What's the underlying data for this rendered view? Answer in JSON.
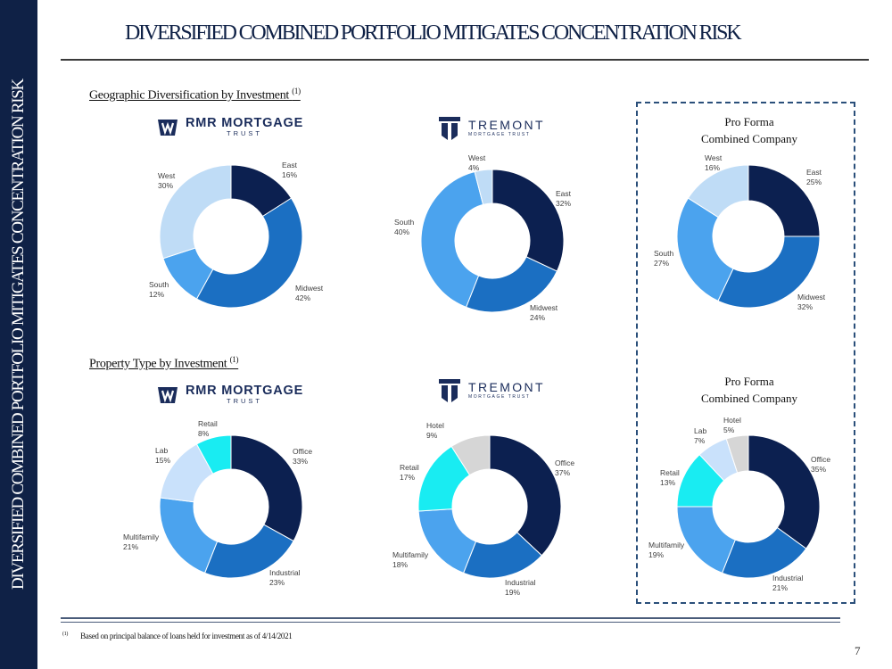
{
  "sidebar_text": "DIVERSIFIED COMBINED PORTFOLIO MITIGATES CONCENTRATION RISK",
  "page_title": "DIVERSIFIED COMBINED PORTFOLIO MITIGATES CONCENTRATION RISK",
  "sections": {
    "geo_heading": "Geographic Diversification by Investment",
    "geo_footnote_marker": "(1)",
    "prop_heading": "Property Type by Investment",
    "prop_footnote_marker": "(1)"
  },
  "logos": {
    "rmr_main": "RMR MORTGAGE",
    "rmr_sub": "TRUST",
    "tremont_main": "TREMONT",
    "tremont_sub": "MORTGAGE TRUST"
  },
  "proforma": {
    "line1": "Pro Forma",
    "line2": "Combined Company"
  },
  "colors": {
    "navy": "#0c2050",
    "blue": "#1b6fc2",
    "light_blue": "#4ba3ee",
    "pale_blue": "#bfdcf6",
    "cyan": "#19ecf2",
    "gray": "#d6d6d6",
    "lavender": "#c9e1fb"
  },
  "chart_data": [
    {
      "type": "pie",
      "id": "rmr-geo",
      "title": "RMR Mortgage Trust - Geographic",
      "categories": [
        "East",
        "Midwest",
        "South",
        "West"
      ],
      "values": [
        16,
        42,
        12,
        30
      ],
      "labels": [
        "16%",
        "42%",
        "12%",
        "30%"
      ],
      "colors": [
        "#0c2050",
        "#1b6fc2",
        "#4ba3ee",
        "#bfdcf6"
      ]
    },
    {
      "type": "pie",
      "id": "tremont-geo",
      "title": "Tremont Mortgage Trust - Geographic",
      "categories": [
        "East",
        "Midwest",
        "South",
        "West"
      ],
      "values": [
        32,
        24,
        40,
        4
      ],
      "labels": [
        "32%",
        "24%",
        "40%",
        "4%"
      ],
      "colors": [
        "#0c2050",
        "#1b6fc2",
        "#4ba3ee",
        "#bfdcf6"
      ]
    },
    {
      "type": "pie",
      "id": "proforma-geo",
      "title": "Pro Forma Combined Company - Geographic",
      "categories": [
        "East",
        "Midwest",
        "South",
        "West"
      ],
      "values": [
        25,
        32,
        27,
        16
      ],
      "labels": [
        "25%",
        "32%",
        "27%",
        "16%"
      ],
      "colors": [
        "#0c2050",
        "#1b6fc2",
        "#4ba3ee",
        "#bfdcf6"
      ]
    },
    {
      "type": "pie",
      "id": "rmr-prop",
      "title": "RMR Mortgage Trust - Property Type",
      "categories": [
        "Office",
        "Industrial",
        "Multifamily",
        "Lab",
        "Retail"
      ],
      "values": [
        33,
        23,
        21,
        15,
        8
      ],
      "labels": [
        "33%",
        "23%",
        "21%",
        "15%",
        "8%"
      ],
      "colors": [
        "#0c2050",
        "#1b6fc2",
        "#4ba3ee",
        "#c9e1fb",
        "#19ecf2"
      ]
    },
    {
      "type": "pie",
      "id": "tremont-prop",
      "title": "Tremont Mortgage Trust - Property Type",
      "categories": [
        "Office",
        "Industrial",
        "Multifamily",
        "Retail",
        "Hotel"
      ],
      "values": [
        37,
        19,
        18,
        17,
        9
      ],
      "labels": [
        "37%",
        "19%",
        "18%",
        "17%",
        "9%"
      ],
      "colors": [
        "#0c2050",
        "#1b6fc2",
        "#4ba3ee",
        "#19ecf2",
        "#d6d6d6"
      ]
    },
    {
      "type": "pie",
      "id": "proforma-prop",
      "title": "Pro Forma Combined Company - Property Type",
      "categories": [
        "Office",
        "Industrial",
        "Multifamily",
        "Retail",
        "Lab",
        "Hotel"
      ],
      "values": [
        35,
        21,
        19,
        13,
        7,
        5
      ],
      "labels": [
        "35%",
        "21%",
        "19%",
        "13%",
        "7%",
        "5%"
      ],
      "colors": [
        "#0c2050",
        "#1b6fc2",
        "#4ba3ee",
        "#19ecf2",
        "#c9e1fb",
        "#d6d6d6"
      ]
    }
  ],
  "footnote": {
    "marker": "(1)",
    "text": "Based on principal balance of loans held for investment as of 4/14/2021"
  },
  "page_number": "7"
}
